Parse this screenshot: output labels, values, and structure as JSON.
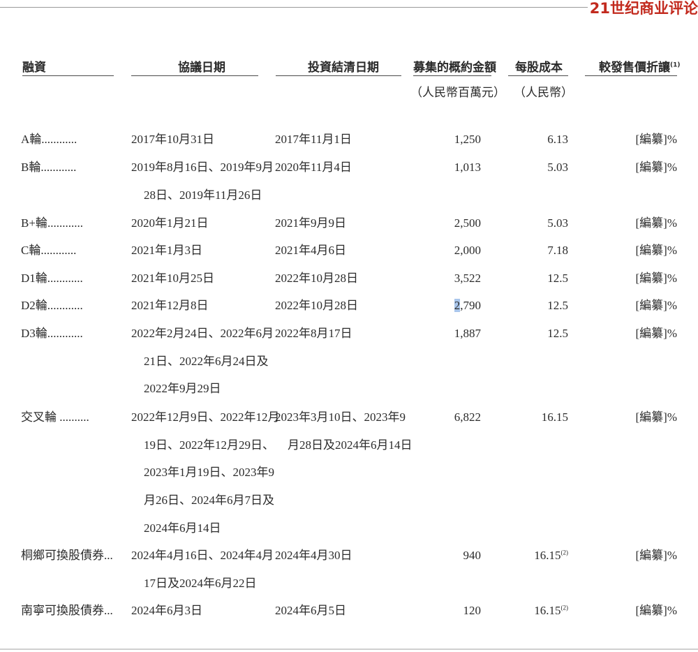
{
  "brand": "21世纪商业评论",
  "table": {
    "headers": {
      "financing": "融資",
      "agreement_date": "協議日期",
      "settlement_date": "投資結清日期",
      "amount": "募集的概約金額",
      "amount_unit": "（人民幣百萬元）",
      "cost_per_share": "每股成本",
      "cost_unit": "（人民幣）",
      "discount": "較發售價折讓",
      "discount_note": "(1)"
    },
    "rows": [
      {
        "round": "A輪",
        "dots": "............",
        "agreement": [
          "2017年10月31日"
        ],
        "settlement": [
          "2017年11月1日"
        ],
        "amount": "1,250",
        "cost": "6.13",
        "cost_note": "",
        "discount": "[編纂]%"
      },
      {
        "round": "B輪",
        "dots": "............",
        "agreement": [
          "2019年8月16日、2019年9月",
          "28日、2019年11月26日"
        ],
        "settlement": [
          "2020年11月4日"
        ],
        "amount": "1,013",
        "cost": "5.03",
        "cost_note": "",
        "discount": "[編纂]%"
      },
      {
        "round": "B+輪",
        "dots": "............",
        "agreement": [
          "2020年1月21日"
        ],
        "settlement": [
          "2021年9月9日"
        ],
        "amount": "2,500",
        "cost": "5.03",
        "cost_note": "",
        "discount": "[編纂]%"
      },
      {
        "round": "C輪",
        "dots": "............",
        "agreement": [
          "2021年1月3日"
        ],
        "settlement": [
          "2021年4月6日"
        ],
        "amount": "2,000",
        "cost": "7.18",
        "cost_note": "",
        "discount": "[編纂]%"
      },
      {
        "round": "D1輪",
        "dots": "............",
        "agreement": [
          "2021年10月25日"
        ],
        "settlement": [
          "2022年10月28日"
        ],
        "amount": "3,522",
        "cost": "12.5",
        "cost_note": "",
        "discount": "[編纂]%"
      },
      {
        "round": "D2輪",
        "dots": "............",
        "agreement": [
          "2021年12月8日"
        ],
        "settlement": [
          "2022年10月28日"
        ],
        "amount": "2,790",
        "cost": "12.5",
        "cost_note": "",
        "discount": "[編纂]%"
      },
      {
        "round": "D3輪",
        "dots": "............",
        "agreement": [
          "2022年2月24日、2022年6月",
          "21日、2022年6月24日及",
          "2022年9月29日"
        ],
        "settlement": [
          "2022年8月17日"
        ],
        "amount": "1,887",
        "cost": "12.5",
        "cost_note": "",
        "discount": "[編纂]%"
      },
      {
        "round": "交叉輪",
        "dots": " ..........",
        "agreement": [
          "2022年12月9日、2022年12月",
          "19日、2022年12月29日、",
          "2023年1月19日、2023年9",
          "月26日、2024年6月7日及",
          "2024年6月14日"
        ],
        "settlement": [
          "2023年3月10日、2023年9",
          "月28日及2024年6月14日"
        ],
        "amount": "6,822",
        "cost": "16.15",
        "cost_note": "",
        "discount": "[編纂]%"
      },
      {
        "round": "桐鄉可換股債券",
        "dots": "...",
        "agreement": [
          "2024年4月16日、2024年4月",
          "17日及2024年6月22日"
        ],
        "settlement": [
          "2024年4月30日"
        ],
        "amount": "940",
        "cost": "16.15",
        "cost_note": "(2)",
        "discount": "[編纂]%"
      },
      {
        "round": "南寧可換股債券",
        "dots": "...",
        "agreement": [
          "2024年6月3日"
        ],
        "settlement": [
          "2024年6月5日"
        ],
        "amount": "120",
        "cost": "16.15",
        "cost_note": "(2)",
        "discount": "[編纂]%"
      }
    ]
  }
}
